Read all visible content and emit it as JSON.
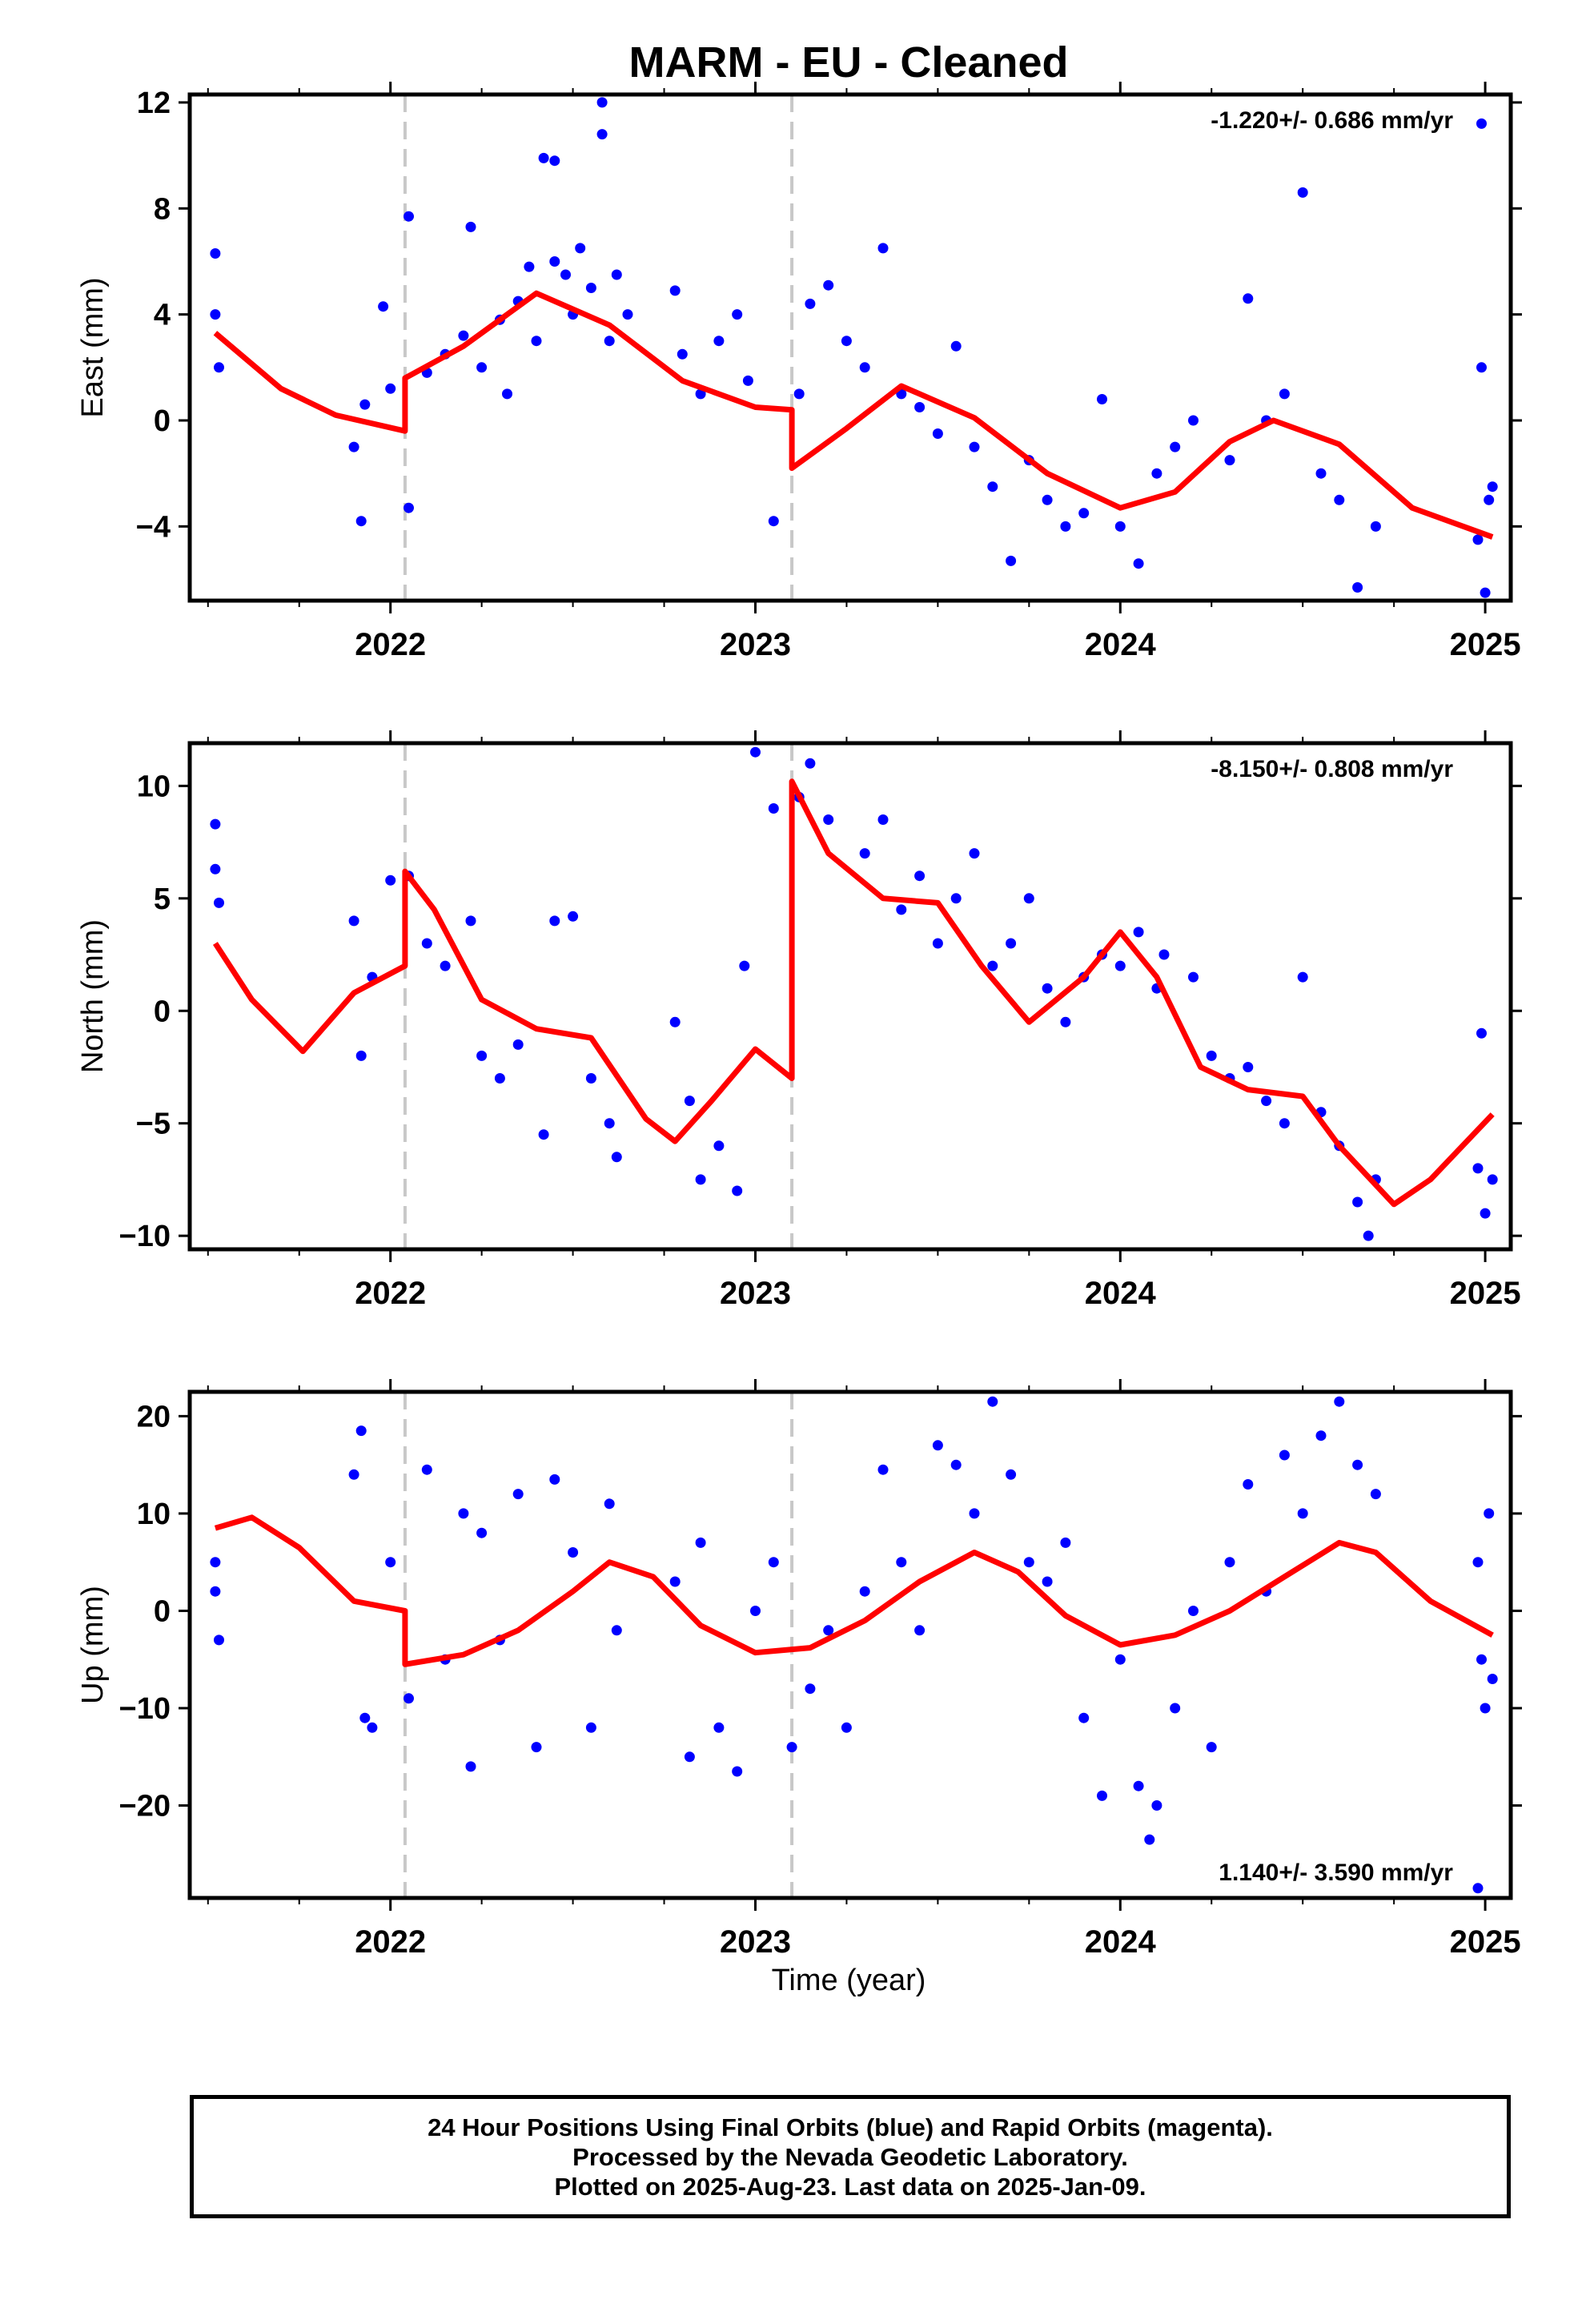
{
  "chart_data": {
    "type": "scatter",
    "title": "MARM  - EU - Cleaned",
    "xlabel": "Time (year)",
    "x_ticks": [
      "2022",
      "2023",
      "2024",
      "2025"
    ],
    "xlim": [
      2021.45,
      2025.07
    ],
    "offsets": [
      2022.04,
      2023.1
    ],
    "colors": {
      "points": "#0000ff",
      "fit": "#ff0000",
      "offsets": "#c8c8c8"
    },
    "panels": [
      {
        "name": "east",
        "ylabel": "East (mm)",
        "ylim": [
          -6.8,
          12.3
        ],
        "y_ticks": [
          12,
          8,
          4,
          0,
          -4
        ],
        "y_tick_labels": [
          "12",
          "8",
          "4",
          "0",
          "−4"
        ],
        "rate_label": "-1.220+/- 0.686 mm/yr",
        "rate_position": "top-right",
        "fit": {
          "x": [
            2021.52,
            2021.7,
            2021.85,
            2022.04,
            2022.04,
            2022.2,
            2022.4,
            2022.6,
            2022.8,
            2023.0,
            2023.1,
            2023.1,
            2023.25,
            2023.4,
            2023.6,
            2023.8,
            2024.0,
            2024.15,
            2024.3,
            2024.42,
            2024.6,
            2024.8,
            2025.02
          ],
          "y": [
            3.3,
            1.2,
            0.2,
            -0.4,
            1.6,
            2.8,
            4.8,
            3.6,
            1.5,
            0.5,
            0.4,
            -1.8,
            -0.3,
            1.3,
            0.1,
            -2.0,
            -3.3,
            -2.7,
            -0.8,
            0.0,
            -0.9,
            -3.3,
            -4.4
          ]
        },
        "points": [
          [
            2021.52,
            6.3
          ],
          [
            2021.52,
            4.0
          ],
          [
            2021.53,
            2.0
          ],
          [
            2021.9,
            -1.0
          ],
          [
            2021.92,
            -3.8
          ],
          [
            2021.93,
            0.6
          ],
          [
            2021.98,
            4.3
          ],
          [
            2022.0,
            1.2
          ],
          [
            2022.05,
            7.7
          ],
          [
            2022.05,
            -3.3
          ],
          [
            2022.1,
            1.8
          ],
          [
            2022.15,
            2.5
          ],
          [
            2022.2,
            3.2
          ],
          [
            2022.22,
            7.3
          ],
          [
            2022.25,
            2.0
          ],
          [
            2022.3,
            3.8
          ],
          [
            2022.32,
            1.0
          ],
          [
            2022.35,
            4.5
          ],
          [
            2022.38,
            5.8
          ],
          [
            2022.4,
            3.0
          ],
          [
            2022.42,
            9.9
          ],
          [
            2022.45,
            9.8
          ],
          [
            2022.45,
            6.0
          ],
          [
            2022.48,
            5.5
          ],
          [
            2022.5,
            4.0
          ],
          [
            2022.52,
            6.5
          ],
          [
            2022.55,
            5.0
          ],
          [
            2022.58,
            12.0
          ],
          [
            2022.58,
            10.8
          ],
          [
            2022.6,
            3.0
          ],
          [
            2022.62,
            5.5
          ],
          [
            2022.65,
            4.0
          ],
          [
            2022.78,
            4.9
          ],
          [
            2022.8,
            2.5
          ],
          [
            2022.85,
            1.0
          ],
          [
            2022.9,
            3.0
          ],
          [
            2022.95,
            4.0
          ],
          [
            2022.98,
            1.5
          ],
          [
            2023.05,
            -3.8
          ],
          [
            2023.12,
            1.0
          ],
          [
            2023.15,
            4.4
          ],
          [
            2023.2,
            5.1
          ],
          [
            2023.25,
            3.0
          ],
          [
            2023.3,
            2.0
          ],
          [
            2023.35,
            6.5
          ],
          [
            2023.4,
            1.0
          ],
          [
            2023.45,
            0.5
          ],
          [
            2023.5,
            -0.5
          ],
          [
            2023.55,
            2.8
          ],
          [
            2023.6,
            -1.0
          ],
          [
            2023.65,
            -2.5
          ],
          [
            2023.7,
            -5.3
          ],
          [
            2023.75,
            -1.5
          ],
          [
            2023.8,
            -3.0
          ],
          [
            2023.85,
            -4.0
          ],
          [
            2023.9,
            -3.5
          ],
          [
            2023.95,
            0.8
          ],
          [
            2024.0,
            -4.0
          ],
          [
            2024.05,
            -5.4
          ],
          [
            2024.1,
            -2.0
          ],
          [
            2024.15,
            -1.0
          ],
          [
            2024.2,
            0.0
          ],
          [
            2024.3,
            -1.5
          ],
          [
            2024.35,
            4.6
          ],
          [
            2024.4,
            0.0
          ],
          [
            2024.45,
            1.0
          ],
          [
            2024.5,
            8.6
          ],
          [
            2024.55,
            -2.0
          ],
          [
            2024.6,
            -3.0
          ],
          [
            2024.65,
            -6.3
          ],
          [
            2024.7,
            -4.0
          ],
          [
            2024.98,
            -4.5
          ],
          [
            2024.99,
            11.2
          ],
          [
            2024.99,
            2.0
          ],
          [
            2025.0,
            -6.5
          ],
          [
            2025.01,
            -3.0
          ],
          [
            2025.02,
            -2.5
          ]
        ]
      },
      {
        "name": "north",
        "ylabel": "North (mm)",
        "ylim": [
          -10.6,
          11.9
        ],
        "y_ticks": [
          10,
          5,
          0,
          -5,
          -10
        ],
        "y_tick_labels": [
          "10",
          "5",
          "0",
          "−5",
          "−10"
        ],
        "rate_label": "-8.150+/- 0.808 mm/yr",
        "rate_position": "top-right",
        "fit": {
          "x": [
            2021.52,
            2021.62,
            2021.76,
            2021.9,
            2022.04,
            2022.04,
            2022.12,
            2022.25,
            2022.4,
            2022.55,
            2022.7,
            2022.78,
            2022.88,
            2023.0,
            2023.1,
            2023.1,
            2023.2,
            2023.35,
            2023.5,
            2023.62,
            2023.75,
            2023.9,
            2024.0,
            2024.1,
            2024.22,
            2024.35,
            2024.5,
            2024.6,
            2024.75,
            2024.85,
            2025.02
          ],
          "y": [
            3.0,
            0.5,
            -1.8,
            0.8,
            2.0,
            6.2,
            4.5,
            0.5,
            -0.8,
            -1.2,
            -4.8,
            -5.8,
            -4.0,
            -1.7,
            -3.0,
            10.2,
            7.0,
            5.0,
            4.8,
            2.0,
            -0.5,
            1.5,
            3.5,
            1.5,
            -2.5,
            -3.5,
            -3.8,
            -6.0,
            -8.6,
            -7.5,
            -4.6
          ]
        },
        "points": [
          [
            2021.52,
            8.3
          ],
          [
            2021.52,
            6.3
          ],
          [
            2021.53,
            4.8
          ],
          [
            2021.9,
            4.0
          ],
          [
            2021.92,
            -2.0
          ],
          [
            2021.95,
            1.5
          ],
          [
            2022.0,
            5.8
          ],
          [
            2022.05,
            6.0
          ],
          [
            2022.1,
            3.0
          ],
          [
            2022.15,
            2.0
          ],
          [
            2022.22,
            4.0
          ],
          [
            2022.25,
            -2.0
          ],
          [
            2022.3,
            -3.0
          ],
          [
            2022.35,
            -1.5
          ],
          [
            2022.42,
            -5.5
          ],
          [
            2022.45,
            4.0
          ],
          [
            2022.5,
            4.2
          ],
          [
            2022.55,
            -3.0
          ],
          [
            2022.6,
            -5.0
          ],
          [
            2022.62,
            -6.5
          ],
          [
            2022.78,
            -0.5
          ],
          [
            2022.82,
            -4.0
          ],
          [
            2022.85,
            -7.5
          ],
          [
            2022.9,
            -6.0
          ],
          [
            2022.95,
            -8.0
          ],
          [
            2022.97,
            2.0
          ],
          [
            2023.0,
            11.5
          ],
          [
            2023.05,
            9.0
          ],
          [
            2023.12,
            9.5
          ],
          [
            2023.15,
            11.0
          ],
          [
            2023.2,
            8.5
          ],
          [
            2023.3,
            7.0
          ],
          [
            2023.35,
            8.5
          ],
          [
            2023.4,
            4.5
          ],
          [
            2023.45,
            6.0
          ],
          [
            2023.5,
            3.0
          ],
          [
            2023.55,
            5.0
          ],
          [
            2023.6,
            7.0
          ],
          [
            2023.65,
            2.0
          ],
          [
            2023.7,
            3.0
          ],
          [
            2023.75,
            5.0
          ],
          [
            2023.8,
            1.0
          ],
          [
            2023.85,
            -0.5
          ],
          [
            2023.9,
            1.5
          ],
          [
            2023.95,
            2.5
          ],
          [
            2024.0,
            2.0
          ],
          [
            2024.05,
            3.5
          ],
          [
            2024.1,
            1.0
          ],
          [
            2024.12,
            2.5
          ],
          [
            2024.2,
            1.5
          ],
          [
            2024.25,
            -2.0
          ],
          [
            2024.3,
            -3.0
          ],
          [
            2024.35,
            -2.5
          ],
          [
            2024.4,
            -4.0
          ],
          [
            2024.45,
            -5.0
          ],
          [
            2024.5,
            1.5
          ],
          [
            2024.55,
            -4.5
          ],
          [
            2024.6,
            -6.0
          ],
          [
            2024.65,
            -8.5
          ],
          [
            2024.68,
            -10.0
          ],
          [
            2024.7,
            -7.5
          ],
          [
            2024.98,
            -7.0
          ],
          [
            2024.99,
            -1.0
          ],
          [
            2025.0,
            -9.0
          ],
          [
            2025.02,
            -7.5
          ]
        ]
      },
      {
        "name": "up",
        "ylabel": "Up (mm)",
        "ylim": [
          -29.5,
          22.5
        ],
        "y_ticks": [
          20,
          10,
          0,
          -10,
          -20
        ],
        "y_tick_labels": [
          "20",
          "10",
          "0",
          "−10",
          "−20"
        ],
        "rate_label": "1.140+/- 3.590 mm/yr",
        "rate_position": "bottom-right",
        "fit": {
          "x": [
            2021.52,
            2021.62,
            2021.75,
            2021.9,
            2022.04,
            2022.04,
            2022.2,
            2022.35,
            2022.5,
            2022.6,
            2022.72,
            2022.85,
            2023.0,
            2023.15,
            2023.3,
            2023.45,
            2023.6,
            2023.72,
            2023.85,
            2024.0,
            2024.15,
            2024.3,
            2024.45,
            2024.6,
            2024.7,
            2024.85,
            2025.02
          ],
          "y": [
            8.5,
            9.6,
            6.5,
            1.0,
            0.0,
            -5.5,
            -4.5,
            -2.0,
            2.0,
            5.0,
            3.5,
            -1.5,
            -4.3,
            -3.8,
            -1.0,
            3.0,
            6.0,
            4.0,
            -0.5,
            -3.5,
            -2.5,
            0.0,
            3.5,
            7.0,
            6.0,
            1.0,
            -2.5
          ]
        },
        "points": [
          [
            2021.52,
            5.0
          ],
          [
            2021.52,
            2.0
          ],
          [
            2021.53,
            -3.0
          ],
          [
            2021.9,
            14.0
          ],
          [
            2021.92,
            18.5
          ],
          [
            2021.93,
            -11.0
          ],
          [
            2021.95,
            -12.0
          ],
          [
            2022.0,
            5.0
          ],
          [
            2022.05,
            -9.0
          ],
          [
            2022.1,
            14.5
          ],
          [
            2022.15,
            -5.0
          ],
          [
            2022.2,
            10.0
          ],
          [
            2022.22,
            -16.0
          ],
          [
            2022.25,
            8.0
          ],
          [
            2022.3,
            -3.0
          ],
          [
            2022.35,
            12.0
          ],
          [
            2022.4,
            -14.0
          ],
          [
            2022.45,
            13.5
          ],
          [
            2022.5,
            6.0
          ],
          [
            2022.55,
            -12.0
          ],
          [
            2022.6,
            11.0
          ],
          [
            2022.62,
            -2.0
          ],
          [
            2022.78,
            3.0
          ],
          [
            2022.82,
            -15.0
          ],
          [
            2022.85,
            7.0
          ],
          [
            2022.9,
            -12.0
          ],
          [
            2022.95,
            -16.5
          ],
          [
            2023.0,
            0.0
          ],
          [
            2023.05,
            5.0
          ],
          [
            2023.1,
            -14.0
          ],
          [
            2023.15,
            -8.0
          ],
          [
            2023.2,
            -2.0
          ],
          [
            2023.25,
            -12.0
          ],
          [
            2023.3,
            2.0
          ],
          [
            2023.35,
            14.5
          ],
          [
            2023.4,
            5.0
          ],
          [
            2023.45,
            -2.0
          ],
          [
            2023.5,
            17.0
          ],
          [
            2023.55,
            15.0
          ],
          [
            2023.6,
            10.0
          ],
          [
            2023.65,
            21.5
          ],
          [
            2023.7,
            14.0
          ],
          [
            2023.75,
            5.0
          ],
          [
            2023.8,
            3.0
          ],
          [
            2023.85,
            7.0
          ],
          [
            2023.9,
            -11.0
          ],
          [
            2023.95,
            -19.0
          ],
          [
            2024.0,
            -5.0
          ],
          [
            2024.05,
            -18.0
          ],
          [
            2024.08,
            -23.5
          ],
          [
            2024.1,
            -20.0
          ],
          [
            2024.15,
            -10.0
          ],
          [
            2024.2,
            0.0
          ],
          [
            2024.25,
            -14.0
          ],
          [
            2024.3,
            5.0
          ],
          [
            2024.35,
            13.0
          ],
          [
            2024.4,
            2.0
          ],
          [
            2024.45,
            16.0
          ],
          [
            2024.5,
            10.0
          ],
          [
            2024.55,
            18.0
          ],
          [
            2024.6,
            21.5
          ],
          [
            2024.65,
            15.0
          ],
          [
            2024.7,
            12.0
          ],
          [
            2024.98,
            5.0
          ],
          [
            2024.98,
            -28.5
          ],
          [
            2024.99,
            -5.0
          ],
          [
            2025.0,
            -10.0
          ],
          [
            2025.01,
            10.0
          ],
          [
            2025.02,
            -7.0
          ]
        ]
      }
    ]
  },
  "footer": {
    "line1": "24 Hour Positions Using Final Orbits (blue) and Rapid Orbits (magenta).",
    "line2": "Processed by the Nevada Geodetic Laboratory.",
    "line3": "Plotted on 2025-Aug-23. Last data on 2025-Jan-09."
  }
}
